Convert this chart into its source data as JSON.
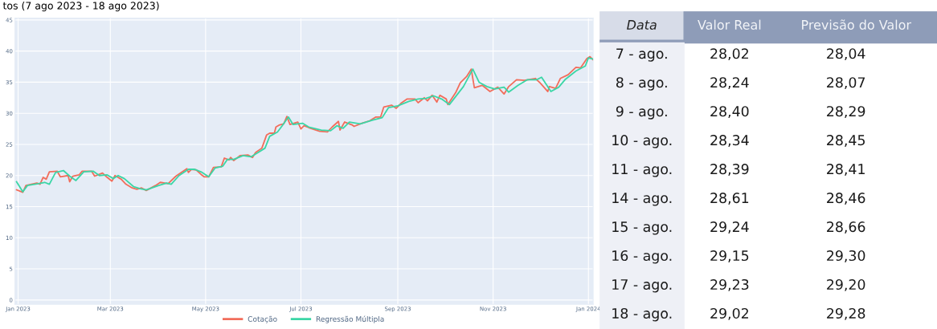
{
  "chart_data": [
    {
      "type": "line",
      "title": "tos (7 ago 2023 - 18 ago 2023)",
      "grid": true,
      "legend": "bottom",
      "xlim": [
        "2022-12-30",
        "2024-01-04"
      ],
      "ylim": [
        -0.7,
        45.3
      ],
      "xticks": [
        {
          "value": "2023-01-01",
          "label": "Jan 2023"
        },
        {
          "value": "2023-03-01",
          "label": "Mar 2023"
        },
        {
          "value": "2023-05-01",
          "label": "May 2023"
        },
        {
          "value": "2023-07-01",
          "label": "Jul 2023"
        },
        {
          "value": "2023-09-01",
          "label": "Sep 2023"
        },
        {
          "value": "2023-11-01",
          "label": "Nov 2023"
        },
        {
          "value": "2024-01-01",
          "label": "Jan 2024"
        }
      ],
      "yticks": [
        0,
        5,
        10,
        15,
        20,
        25,
        30,
        35,
        40,
        45
      ],
      "series": [
        {
          "name": "Cotação",
          "color": "#f26d5b",
          "x": [
            "2022-12-31",
            "2023-01-04",
            "2023-01-06",
            "2023-01-13",
            "2023-01-15",
            "2023-01-17",
            "2023-01-19",
            "2023-01-21",
            "2023-01-26",
            "2023-01-28",
            "2023-02-02",
            "2023-02-03",
            "2023-02-05",
            "2023-02-09",
            "2023-02-11",
            "2023-02-17",
            "2023-02-19",
            "2023-02-24",
            "2023-02-27",
            "2023-03-02",
            "2023-03-04",
            "2023-03-08",
            "2023-03-11",
            "2023-03-15",
            "2023-03-18",
            "2023-03-21",
            "2023-03-24",
            "2023-03-30",
            "2023-04-02",
            "2023-04-07",
            "2023-04-12",
            "2023-04-19",
            "2023-04-20",
            "2023-04-22",
            "2023-04-25",
            "2023-04-28",
            "2023-04-30",
            "2023-05-03",
            "2023-05-06",
            "2023-05-11",
            "2023-05-13",
            "2023-05-16",
            "2023-05-17",
            "2023-05-19",
            "2023-05-23",
            "2023-05-28",
            "2023-05-31",
            "2023-06-02",
            "2023-06-06",
            "2023-06-09",
            "2023-06-11",
            "2023-06-14",
            "2023-06-15",
            "2023-06-17",
            "2023-06-20",
            "2023-06-22",
            "2023-06-24",
            "2023-06-29",
            "2023-07-01",
            "2023-07-03",
            "2023-07-06",
            "2023-07-13",
            "2023-07-18",
            "2023-07-21",
            "2023-07-25",
            "2023-07-26",
            "2023-07-29",
            "2023-08-03",
            "2023-08-04",
            "2023-08-09",
            "2023-08-14",
            "2023-08-18",
            "2023-08-21",
            "2023-08-23",
            "2023-08-28",
            "2023-08-31",
            "2023-09-03",
            "2023-09-07",
            "2023-09-12",
            "2023-09-14",
            "2023-09-18",
            "2023-09-20",
            "2023-09-23",
            "2023-09-26",
            "2023-09-28",
            "2023-10-02",
            "2023-10-03",
            "2023-10-08",
            "2023-10-11",
            "2023-10-15",
            "2023-10-18",
            "2023-10-20",
            "2023-10-25",
            "2023-10-30",
            "2023-11-04",
            "2023-11-08",
            "2023-11-11",
            "2023-11-16",
            "2023-11-21",
            "2023-11-28",
            "2023-12-01",
            "2023-12-06",
            "2023-12-07",
            "2023-12-11",
            "2023-12-14",
            "2023-12-19",
            "2023-12-24",
            "2023-12-27",
            "2023-12-31",
            "2024-01-02",
            "2024-01-04"
          ],
          "values": [
            17.7,
            17.3,
            18.4,
            18.8,
            18.6,
            19.7,
            19.4,
            20.6,
            20.7,
            19.8,
            20.0,
            19.0,
            19.9,
            20.1,
            20.7,
            20.7,
            19.9,
            20.4,
            19.7,
            19.1,
            20.0,
            19.4,
            18.6,
            18.0,
            17.8,
            18.0,
            17.6,
            18.4,
            18.9,
            18.7,
            19.9,
            21.1,
            20.5,
            21.0,
            20.9,
            20.2,
            19.8,
            19.8,
            21.3,
            21.4,
            22.8,
            22.5,
            22.9,
            22.4,
            23.2,
            23.3,
            22.9,
            23.7,
            24.4,
            26.5,
            26.8,
            26.8,
            27.8,
            28.1,
            28.3,
            29.5,
            28.2,
            28.6,
            27.5,
            28.0,
            27.7,
            27.1,
            27.0,
            27.8,
            28.7,
            27.3,
            28.6,
            28.1,
            27.9,
            28.4,
            28.8,
            29.4,
            29.4,
            31.0,
            31.3,
            30.8,
            31.6,
            32.3,
            32.3,
            31.7,
            32.5,
            32.0,
            32.9,
            31.8,
            32.9,
            32.3,
            31.4,
            33.3,
            34.9,
            35.9,
            37.1,
            34.1,
            34.5,
            33.5,
            34.2,
            33.1,
            34.3,
            35.4,
            35.3,
            35.6,
            34.9,
            33.5,
            34.3,
            34.0,
            35.6,
            36.2,
            37.4,
            37.3,
            38.8,
            39.1,
            38.6
          ]
        },
        {
          "name": "Regressão Múltipla",
          "color": "#3bd6a6",
          "x": [
            "2022-12-31",
            "2023-01-04",
            "2023-01-07",
            "2023-01-14",
            "2023-01-18",
            "2023-01-21",
            "2023-01-25",
            "2023-01-30",
            "2023-02-03",
            "2023-02-07",
            "2023-02-12",
            "2023-02-18",
            "2023-02-22",
            "2023-02-27",
            "2023-03-03",
            "2023-03-06",
            "2023-03-10",
            "2023-03-16",
            "2023-03-20",
            "2023-03-24",
            "2023-04-01",
            "2023-04-06",
            "2023-04-09",
            "2023-04-14",
            "2023-04-20",
            "2023-04-24",
            "2023-04-28",
            "2023-05-03",
            "2023-05-07",
            "2023-05-12",
            "2023-05-15",
            "2023-05-19",
            "2023-05-25",
            "2023-05-30",
            "2023-06-03",
            "2023-06-08",
            "2023-06-11",
            "2023-06-16",
            "2023-06-19",
            "2023-06-23",
            "2023-06-26",
            "2023-07-02",
            "2023-07-06",
            "2023-07-14",
            "2023-07-20",
            "2023-07-24",
            "2023-07-28",
            "2023-08-01",
            "2023-08-08",
            "2023-08-16",
            "2023-08-22",
            "2023-08-26",
            "2023-09-01",
            "2023-09-08",
            "2023-09-14",
            "2023-09-19",
            "2023-09-24",
            "2023-09-29",
            "2023-10-04",
            "2023-10-13",
            "2023-10-19",
            "2023-10-23",
            "2023-10-28",
            "2023-11-02",
            "2023-11-08",
            "2023-11-11",
            "2023-11-17",
            "2023-11-23",
            "2023-11-29",
            "2023-12-02",
            "2023-12-08",
            "2023-12-13",
            "2023-12-17",
            "2023-12-24",
            "2023-12-30",
            "2024-01-01",
            "2024-01-04"
          ],
          "values": [
            19.0,
            17.4,
            18.4,
            18.7,
            18.9,
            18.6,
            20.5,
            20.8,
            19.9,
            19.2,
            20.6,
            20.7,
            20.0,
            20.1,
            19.5,
            20.0,
            19.5,
            18.2,
            17.9,
            17.7,
            18.4,
            18.8,
            18.6,
            20.0,
            21.0,
            21.0,
            20.6,
            19.8,
            21.2,
            21.5,
            22.6,
            22.6,
            23.2,
            23.0,
            23.6,
            24.4,
            26.3,
            27.0,
            28.0,
            29.4,
            28.2,
            28.4,
            27.8,
            27.3,
            27.2,
            28.0,
            27.6,
            28.6,
            28.3,
            28.9,
            29.3,
            30.9,
            31.2,
            31.9,
            32.3,
            32.4,
            32.8,
            32.3,
            31.4,
            34.3,
            37.1,
            35.0,
            34.3,
            33.9,
            34.2,
            33.4,
            34.5,
            35.4,
            35.4,
            35.8,
            33.5,
            34.2,
            35.4,
            36.8,
            37.6,
            38.9,
            38.7
          ]
        }
      ]
    },
    {
      "type": "other",
      "xlabel": "Data",
      "categories": [
        "7 - ago.",
        "8 - ago.",
        "9 - ago.",
        "10 - ago.",
        "11 - ago.",
        "14 - ago.",
        "15 - ago.",
        "16 - ago.",
        "17 - ago.",
        "18 - ago."
      ],
      "series": [
        {
          "name": "Valor Real",
          "values": [
            28.02,
            28.24,
            28.4,
            28.34,
            28.39,
            28.61,
            29.24,
            29.15,
            29.23,
            29.02
          ],
          "value_labels": [
            "28,02",
            "28,24",
            "28,40",
            "28,34",
            "28,39",
            "28,61",
            "29,24",
            "29,15",
            "29,23",
            "29,02"
          ]
        },
        {
          "name": "Previsão do Valor",
          "values": [
            28.04,
            28.07,
            28.29,
            28.45,
            28.41,
            28.46,
            28.66,
            29.3,
            29.2,
            29.28
          ],
          "value_labels": [
            "28,04",
            "28,07",
            "28,29",
            "28,45",
            "28,41",
            "28,46",
            "28,66",
            "29,30",
            "29,20",
            "29,28"
          ]
        }
      ]
    }
  ]
}
